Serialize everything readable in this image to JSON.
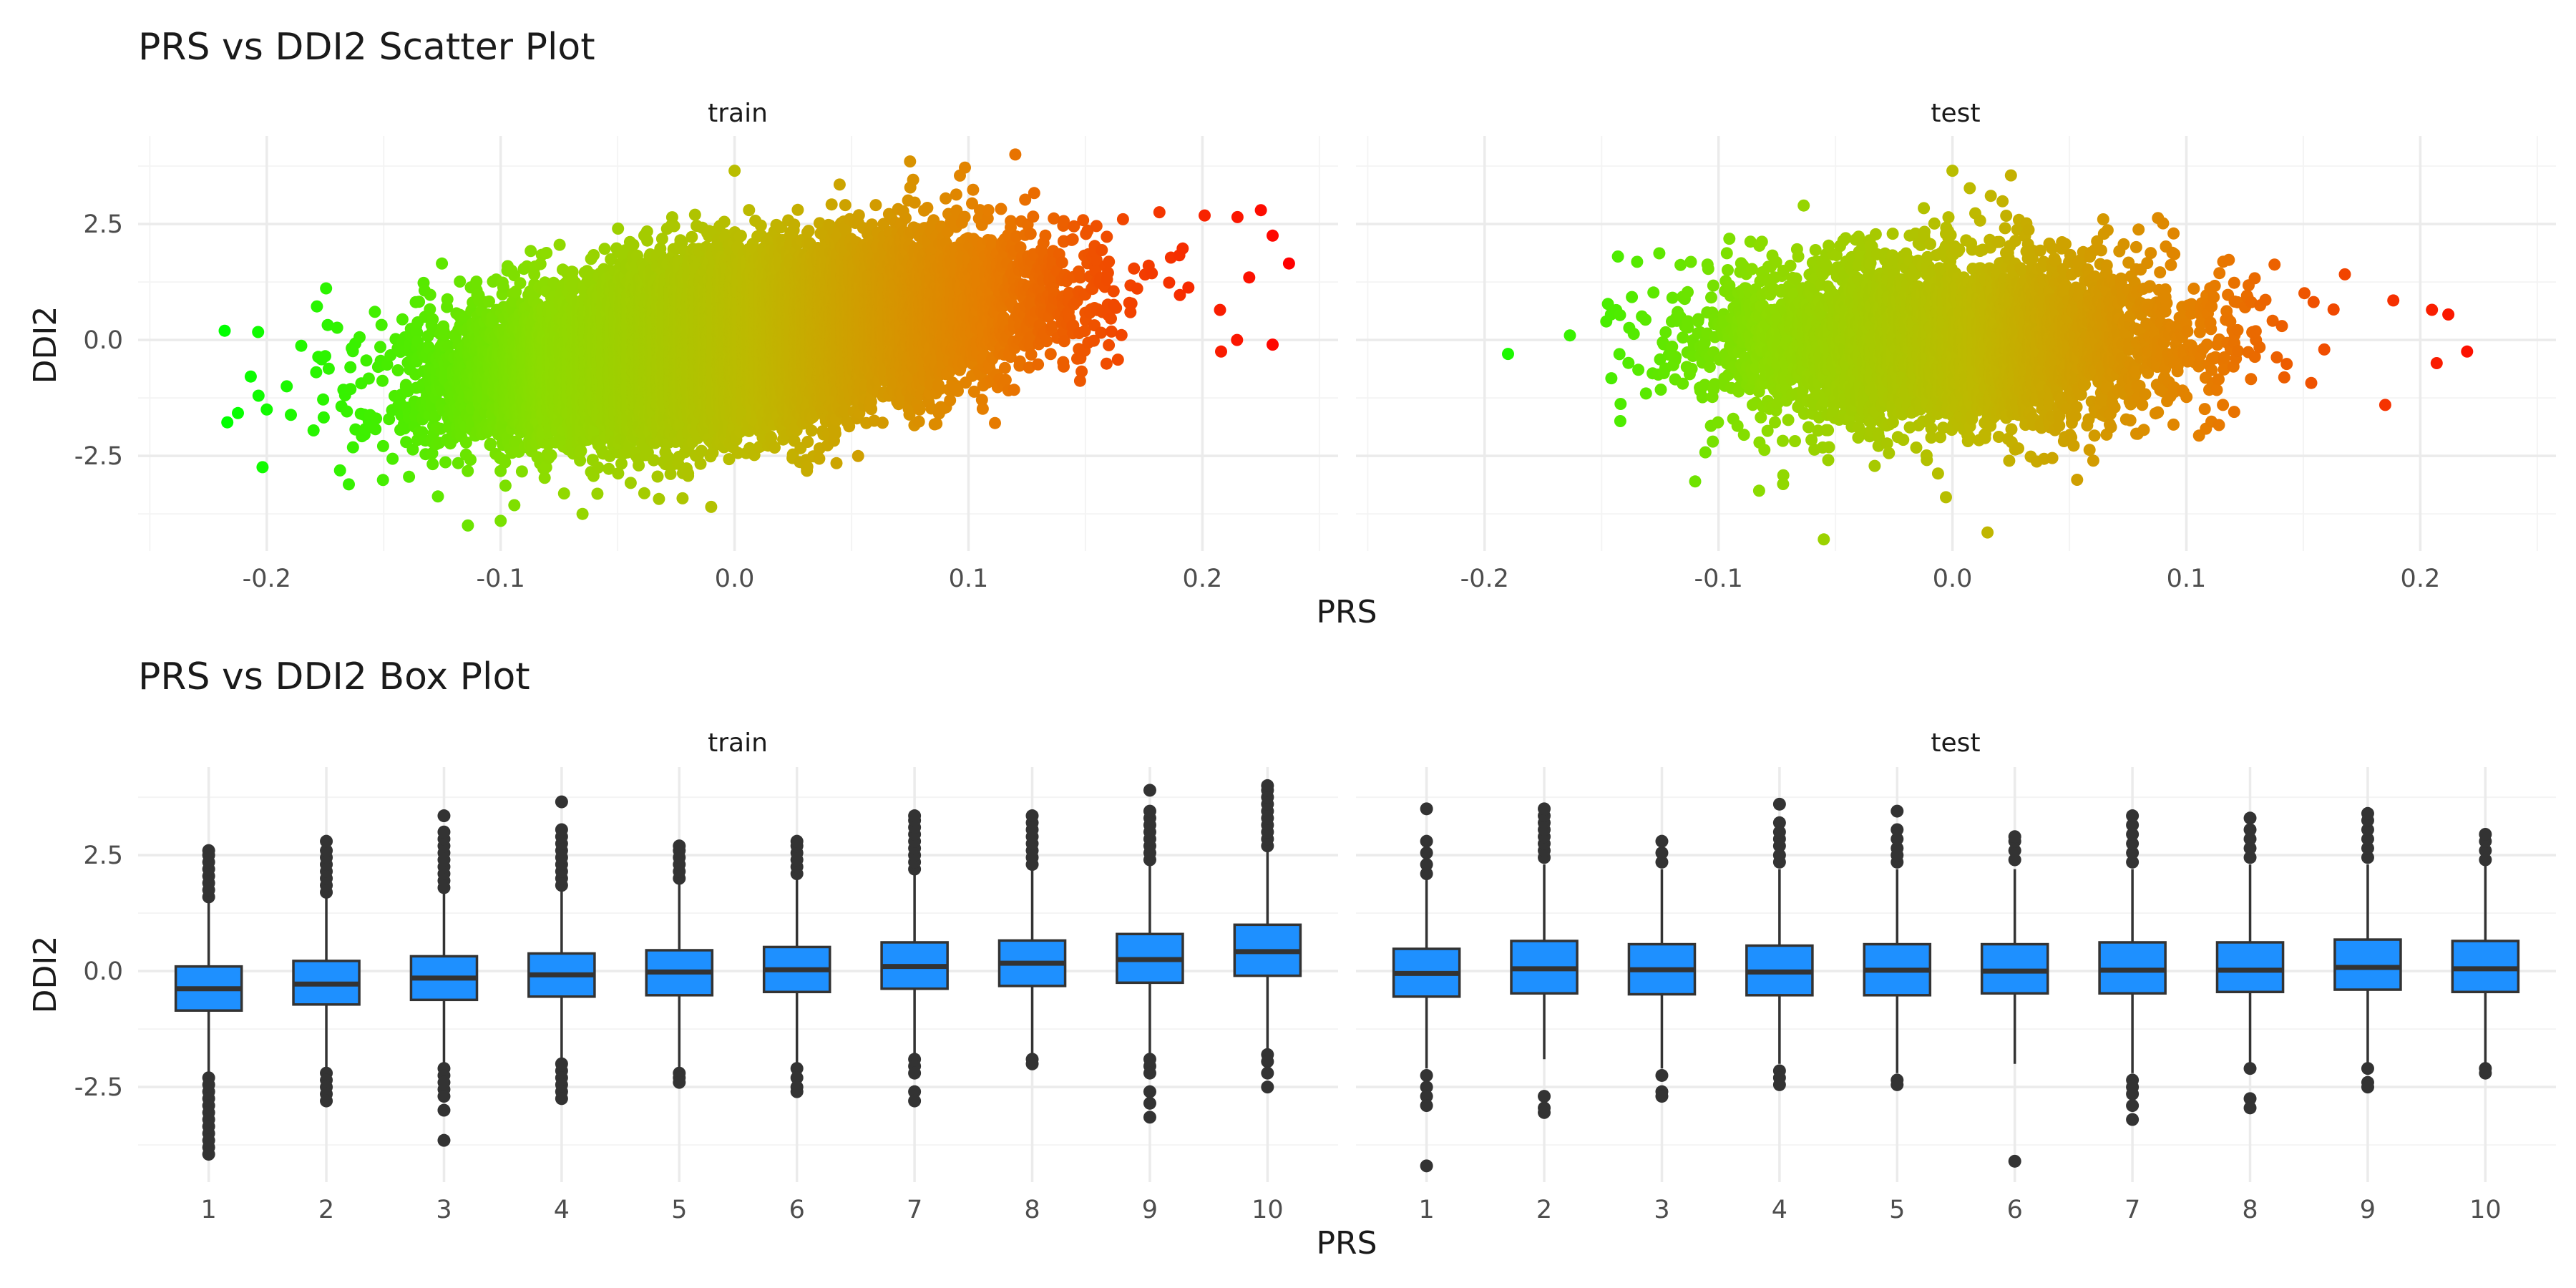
{
  "colors": {
    "background": "#ffffff",
    "grid_major": "#ebebeb",
    "grid_minor": "#f4f4f4",
    "tick_text": "#4d4d4d",
    "text": "#1a1a1a",
    "box_fill": "#1e90ff",
    "box_line": "#333333",
    "gradient_low": "#00ff00",
    "gradient_high": "#ff0000"
  },
  "scatter_section": {
    "title": "PRS vs DDI2 Scatter Plot",
    "xlabel": "PRS",
    "ylabel": "DDI2"
  },
  "box_section": {
    "title": "PRS vs DDI2 Box Plot",
    "xlabel": "PRS",
    "ylabel": "DDI2"
  },
  "chart_data": [
    {
      "type": "scatter",
      "title": "PRS vs DDI2 Scatter Plot",
      "xlabel": "PRS",
      "ylabel": "DDI2",
      "xlim": [
        -0.255,
        0.258
      ],
      "ylim": [
        -4.55,
        4.4
      ],
      "x_ticks": [
        -0.2,
        -0.1,
        0.0,
        0.1,
        0.2
      ],
      "x_tick_labels": [
        "-0.2",
        "-0.1",
        "0.0",
        "0.1",
        "0.2"
      ],
      "y_ticks": [
        -2.5,
        0.0,
        2.5
      ],
      "y_tick_labels": [
        "-2.5",
        "0.0",
        "2.5"
      ],
      "grid": true,
      "color_encoding": "color gradient green (low PRS) to red (high PRS)",
      "panels": [
        {
          "name": "train",
          "n_points": 18000,
          "prs_mean": 0.0,
          "prs_sd": 0.055,
          "ddi2_intercept": 0.0,
          "ddi2_slope": 7.0,
          "ddi2_sd": 0.85,
          "notable_points": [
            {
              "x": -0.218,
              "y": 0.2
            },
            {
              "x": -0.2,
              "y": -1.5
            },
            {
              "x": -0.18,
              "y": -1.95
            },
            {
              "x": -0.175,
              "y": -0.35
            },
            {
              "x": 0.215,
              "y": 2.65
            },
            {
              "x": 0.225,
              "y": 2.8
            },
            {
              "x": 0.23,
              "y": 2.25
            },
            {
              "x": 0.237,
              "y": 1.65
            },
            {
              "x": 0.23,
              "y": -0.1
            },
            {
              "x": 0.208,
              "y": -0.25
            },
            {
              "x": 0.22,
              "y": 1.35
            },
            {
              "x": 0.12,
              "y": 4.0
            },
            {
              "x": 0.075,
              "y": 3.85
            },
            {
              "x": -0.114,
              "y": -4.0
            },
            {
              "x": -0.1,
              "y": -3.9
            },
            {
              "x": -0.065,
              "y": -3.75
            },
            {
              "x": -0.01,
              "y": -3.6
            },
            {
              "x": 0.0,
              "y": 3.65
            }
          ]
        },
        {
          "name": "test",
          "n_points": 4500,
          "prs_mean": 0.0,
          "prs_sd": 0.05,
          "ddi2_intercept": 0.0,
          "ddi2_slope": 0.0,
          "ddi2_sd": 0.9,
          "notable_points": [
            {
              "x": -0.19,
              "y": -0.3
            },
            {
              "x": -0.146,
              "y": 0.55
            },
            {
              "x": -0.148,
              "y": 0.4
            },
            {
              "x": -0.143,
              "y": 1.8
            },
            {
              "x": -0.142,
              "y": -1.75
            },
            {
              "x": -0.11,
              "y": -3.05
            },
            {
              "x": 0.205,
              "y": 0.65
            },
            {
              "x": 0.212,
              "y": 0.55
            },
            {
              "x": 0.22,
              "y": -0.25
            },
            {
              "x": 0.207,
              "y": -0.5
            },
            {
              "x": 0.185,
              "y": -1.4
            },
            {
              "x": -0.055,
              "y": -4.3
            },
            {
              "x": 0.0,
              "y": 3.65
            },
            {
              "x": 0.025,
              "y": 3.55
            },
            {
              "x": 0.015,
              "y": -4.15
            }
          ]
        }
      ]
    },
    {
      "type": "box",
      "title": "PRS vs DDI2 Box Plot",
      "xlabel": "PRS",
      "ylabel": "DDI2",
      "categories": [
        "1",
        "2",
        "3",
        "4",
        "5",
        "6",
        "7",
        "8",
        "9",
        "10"
      ],
      "ylim": [
        -4.55,
        4.4
      ],
      "y_ticks": [
        -2.5,
        0.0,
        2.5
      ],
      "y_tick_labels": [
        "-2.5",
        "0.0",
        "2.5"
      ],
      "grid": true,
      "panels": [
        {
          "name": "train",
          "boxes": [
            {
              "q1": -0.85,
              "median": -0.38,
              "q3": 0.1,
              "whisker_low": -2.2,
              "whisker_high": 1.5,
              "outliers_low": [
                -2.3,
                -2.45,
                -2.6,
                -2.75,
                -2.9,
                -3.05,
                -3.2,
                -3.35,
                -3.5,
                -3.65,
                -3.8,
                -3.95
              ],
              "outliers_high": [
                1.6,
                1.75,
                1.9,
                2.05,
                2.2,
                2.35,
                2.5,
                2.6
              ]
            },
            {
              "q1": -0.72,
              "median": -0.28,
              "q3": 0.22,
              "whisker_low": -2.1,
              "whisker_high": 1.6,
              "outliers_low": [
                -2.2,
                -2.35,
                -2.5,
                -2.65,
                -2.8
              ],
              "outliers_high": [
                1.7,
                1.85,
                2.0,
                2.15,
                2.3,
                2.45,
                2.6,
                2.8
              ]
            },
            {
              "q1": -0.62,
              "median": -0.15,
              "q3": 0.32,
              "whisker_low": -2.0,
              "whisker_high": 1.7,
              "outliers_low": [
                -2.1,
                -2.25,
                -2.4,
                -2.55,
                -2.7,
                -3.0,
                -3.65
              ],
              "outliers_high": [
                1.8,
                1.95,
                2.1,
                2.25,
                2.4,
                2.55,
                2.7,
                2.85,
                3.0,
                3.35
              ]
            },
            {
              "q1": -0.55,
              "median": -0.08,
              "q3": 0.38,
              "whisker_low": -1.9,
              "whisker_high": 1.75,
              "outliers_low": [
                -2.0,
                -2.15,
                -2.3,
                -2.45,
                -2.6,
                -2.75
              ],
              "outliers_high": [
                1.85,
                2.0,
                2.15,
                2.3,
                2.45,
                2.6,
                2.75,
                2.9,
                3.05,
                3.65
              ]
            },
            {
              "q1": -0.52,
              "median": -0.02,
              "q3": 0.45,
              "whisker_low": -2.1,
              "whisker_high": 1.9,
              "outliers_low": [
                -2.2,
                -2.3,
                -2.4
              ],
              "outliers_high": [
                2.0,
                2.15,
                2.3,
                2.45,
                2.6,
                2.7
              ]
            },
            {
              "q1": -0.45,
              "median": 0.03,
              "q3": 0.52,
              "whisker_low": -2.0,
              "whisker_high": 2.0,
              "outliers_low": [
                -2.1,
                -2.3,
                -2.5,
                -2.6
              ],
              "outliers_high": [
                2.1,
                2.25,
                2.4,
                2.55,
                2.7,
                2.8
              ]
            },
            {
              "q1": -0.38,
              "median": 0.1,
              "q3": 0.62,
              "whisker_low": -1.8,
              "whisker_high": 2.1,
              "outliers_low": [
                -1.9,
                -2.05,
                -2.2,
                -2.6,
                -2.8
              ],
              "outliers_high": [
                2.2,
                2.35,
                2.5,
                2.65,
                2.8,
                2.95,
                3.1,
                3.25,
                3.35
              ]
            },
            {
              "q1": -0.32,
              "median": 0.17,
              "q3": 0.66,
              "whisker_low": -1.8,
              "whisker_high": 2.2,
              "outliers_low": [
                -1.9,
                -2.0
              ],
              "outliers_high": [
                2.3,
                2.45,
                2.6,
                2.75,
                2.9,
                3.05,
                3.2,
                3.35
              ]
            },
            {
              "q1": -0.25,
              "median": 0.25,
              "q3": 0.8,
              "whisker_low": -1.8,
              "whisker_high": 2.3,
              "outliers_low": [
                -1.9,
                -2.05,
                -2.2,
                -2.6,
                -2.85,
                -3.15
              ],
              "outliers_high": [
                2.4,
                2.55,
                2.7,
                2.85,
                3.0,
                3.15,
                3.3,
                3.45,
                3.9
              ]
            },
            {
              "q1": -0.1,
              "median": 0.42,
              "q3": 1.0,
              "whisker_low": -1.7,
              "whisker_high": 2.6,
              "outliers_low": [
                -1.8,
                -1.95,
                -2.2,
                -2.5
              ],
              "outliers_high": [
                2.7,
                2.85,
                3.0,
                3.15,
                3.3,
                3.45,
                3.6,
                3.75,
                3.9,
                4.0
              ]
            }
          ]
        },
        {
          "name": "test",
          "boxes": [
            {
              "q1": -0.55,
              "median": -0.05,
              "q3": 0.48,
              "whisker_low": -2.1,
              "whisker_high": 2.0,
              "outliers_low": [
                -2.25,
                -2.5,
                -2.7,
                -2.9,
                -4.2
              ],
              "outliers_high": [
                2.1,
                2.3,
                2.55,
                2.8,
                3.5
              ]
            },
            {
              "q1": -0.48,
              "median": 0.05,
              "q3": 0.65,
              "whisker_low": -1.9,
              "whisker_high": 2.3,
              "outliers_low": [
                -2.7,
                -2.95,
                -3.05
              ],
              "outliers_high": [
                2.45,
                2.6,
                2.75,
                2.9,
                3.05,
                3.2,
                3.35,
                3.5
              ]
            },
            {
              "q1": -0.5,
              "median": 0.03,
              "q3": 0.58,
              "whisker_low": -2.1,
              "whisker_high": 2.2,
              "outliers_low": [
                -2.25,
                -2.6,
                -2.7
              ],
              "outliers_high": [
                2.35,
                2.55,
                2.8
              ]
            },
            {
              "q1": -0.52,
              "median": -0.02,
              "q3": 0.55,
              "whisker_low": -2.0,
              "whisker_high": 2.2,
              "outliers_low": [
                -2.15,
                -2.3,
                -2.45
              ],
              "outliers_high": [
                2.35,
                2.5,
                2.7,
                2.85,
                3.0,
                3.2,
                3.6
              ]
            },
            {
              "q1": -0.52,
              "median": 0.02,
              "q3": 0.58,
              "whisker_low": -2.2,
              "whisker_high": 2.2,
              "outliers_low": [
                -2.35,
                -2.45
              ],
              "outliers_high": [
                2.35,
                2.5,
                2.65,
                2.85,
                3.05,
                3.45
              ]
            },
            {
              "q1": -0.48,
              "median": 0.0,
              "q3": 0.58,
              "whisker_low": -2.0,
              "whisker_high": 2.2,
              "outliers_low": [
                -4.1
              ],
              "outliers_high": [
                2.4,
                2.6,
                2.8,
                2.9
              ]
            },
            {
              "q1": -0.48,
              "median": 0.02,
              "q3": 0.62,
              "whisker_low": -2.2,
              "whisker_high": 2.2,
              "outliers_low": [
                -2.35,
                -2.5,
                -2.65,
                -2.9,
                -3.2
              ],
              "outliers_high": [
                2.35,
                2.55,
                2.75,
                2.95,
                3.15,
                3.35
              ]
            },
            {
              "q1": -0.45,
              "median": 0.02,
              "q3": 0.62,
              "whisker_low": -2.0,
              "whisker_high": 2.3,
              "outliers_low": [
                -2.1,
                -2.75,
                -2.95
              ],
              "outliers_high": [
                2.45,
                2.65,
                2.85,
                3.05,
                3.3
              ]
            },
            {
              "q1": -0.4,
              "median": 0.08,
              "q3": 0.68,
              "whisker_low": -2.0,
              "whisker_high": 2.3,
              "outliers_low": [
                -2.1,
                -2.4,
                -2.5
              ],
              "outliers_high": [
                2.45,
                2.65,
                2.85,
                3.05,
                3.25,
                3.4
              ]
            },
            {
              "q1": -0.45,
              "median": 0.05,
              "q3": 0.65,
              "whisker_low": -2.0,
              "whisker_high": 2.3,
              "outliers_low": [
                -2.1,
                -2.2
              ],
              "outliers_high": [
                2.4,
                2.6,
                2.8,
                2.95
              ]
            }
          ]
        }
      ]
    }
  ]
}
